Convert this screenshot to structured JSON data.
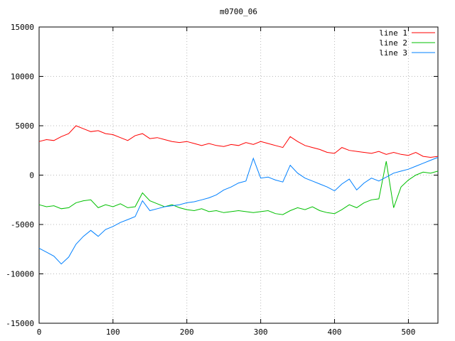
{
  "chart_data": {
    "type": "line",
    "title": "m0700_06",
    "xlabel": "",
    "ylabel": "",
    "xlim": [
      0,
      540
    ],
    "ylim": [
      -15000,
      15000
    ],
    "xticks": [
      0,
      100,
      200,
      300,
      400,
      500
    ],
    "yticks": [
      -15000,
      -10000,
      -5000,
      0,
      5000,
      10000,
      15000
    ],
    "grid": true,
    "legend_position": "top-right",
    "background": "#ffffff",
    "border_color": "#000000",
    "grid_color": "#b8b8b8",
    "x": [
      0,
      10,
      20,
      30,
      40,
      50,
      60,
      70,
      80,
      90,
      100,
      110,
      120,
      130,
      140,
      150,
      160,
      170,
      180,
      190,
      200,
      210,
      220,
      230,
      240,
      250,
      260,
      270,
      280,
      290,
      300,
      310,
      320,
      330,
      340,
      350,
      360,
      370,
      380,
      390,
      400,
      410,
      420,
      430,
      440,
      450,
      460,
      470,
      480,
      490,
      500,
      510,
      520,
      530,
      540
    ],
    "series": [
      {
        "name": "line 1",
        "color": "#ff0000",
        "values": [
          3400,
          3600,
          3500,
          3900,
          4200,
          5000,
          4700,
          4400,
          4500,
          4200,
          4100,
          3800,
          3500,
          4000,
          4200,
          3700,
          3800,
          3600,
          3400,
          3300,
          3400,
          3200,
          3000,
          3200,
          3000,
          2900,
          3100,
          3000,
          3300,
          3100,
          3400,
          3200,
          3000,
          2800,
          3900,
          3400,
          3000,
          2800,
          2600,
          2300,
          2200,
          2800,
          2500,
          2400,
          2300,
          2200,
          2400,
          2100,
          2300,
          2100,
          2000,
          2300,
          1900,
          1800,
          1900
        ]
      },
      {
        "name": "line 2",
        "color": "#00c000",
        "values": [
          -3000,
          -3200,
          -3100,
          -3400,
          -3300,
          -2800,
          -2600,
          -2500,
          -3300,
          -3000,
          -3200,
          -2900,
          -3300,
          -3200,
          -1800,
          -2600,
          -2900,
          -3200,
          -3000,
          -3300,
          -3500,
          -3600,
          -3400,
          -3700,
          -3600,
          -3800,
          -3700,
          -3600,
          -3700,
          -3800,
          -3700,
          -3600,
          -3900,
          -4000,
          -3600,
          -3300,
          -3500,
          -3200,
          -3600,
          -3800,
          -3900,
          -3500,
          -3000,
          -3300,
          -2800,
          -2500,
          -2400,
          1400,
          -3300,
          -1200,
          -500,
          0,
          300,
          200,
          400
        ]
      },
      {
        "name": "line 3",
        "color": "#0080ff",
        "values": [
          -7400,
          -7800,
          -8200,
          -9000,
          -8300,
          -7000,
          -6200,
          -5600,
          -6200,
          -5500,
          -5200,
          -4800,
          -4500,
          -4200,
          -2600,
          -3600,
          -3400,
          -3200,
          -3100,
          -3000,
          -2800,
          -2700,
          -2500,
          -2300,
          -2000,
          -1500,
          -1200,
          -800,
          -600,
          1700,
          -300,
          -200,
          -500,
          -700,
          1000,
          200,
          -300,
          -600,
          -900,
          -1200,
          -1600,
          -900,
          -400,
          -1500,
          -800,
          -300,
          -600,
          -200,
          200,
          400,
          600,
          900,
          1200,
          1500,
          1800
        ]
      }
    ]
  }
}
